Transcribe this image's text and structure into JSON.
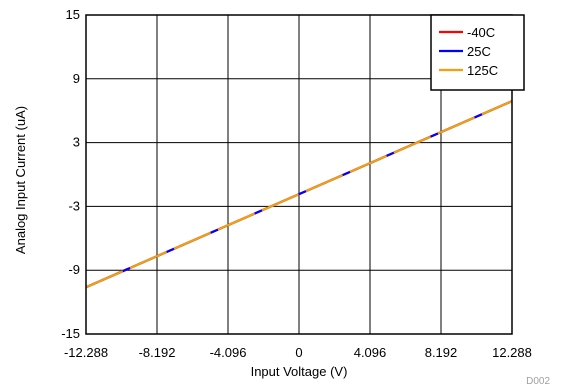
{
  "chart_data": {
    "type": "line",
    "xlabel": "Input Voltage (V)",
    "ylabel": "Analog Input Current (uA)",
    "xlim": [
      -12.288,
      12.288
    ],
    "ylim": [
      -15,
      15
    ],
    "x_ticks": [
      "-12.288",
      "-8.192",
      "-4.096",
      "0",
      "4.096",
      "8.192",
      "12.288"
    ],
    "y_ticks": [
      "15",
      "9",
      "3",
      "-3",
      "-9",
      "-15"
    ],
    "x_tick_values": [
      -12.288,
      -8.192,
      -4.096,
      0,
      4.096,
      8.192,
      12.288
    ],
    "y_tick_values": [
      15,
      9,
      3,
      -3,
      -9,
      -15
    ],
    "grid": true,
    "legend_position": "top-right",
    "series": [
      {
        "name": "-40C",
        "color": "#ff0000",
        "x": [
          -12.288,
          12.288
        ],
        "y": [
          -10.6,
          6.9
        ]
      },
      {
        "name": "25C",
        "color": "#0000ff",
        "x": [
          -12.288,
          12.288
        ],
        "y": [
          -10.6,
          6.9
        ]
      },
      {
        "name": "125C",
        "color": "#f5a00a",
        "x": [
          -12.288,
          12.288
        ],
        "y": [
          -10.6,
          6.9
        ]
      }
    ],
    "figure_code": "D002"
  }
}
